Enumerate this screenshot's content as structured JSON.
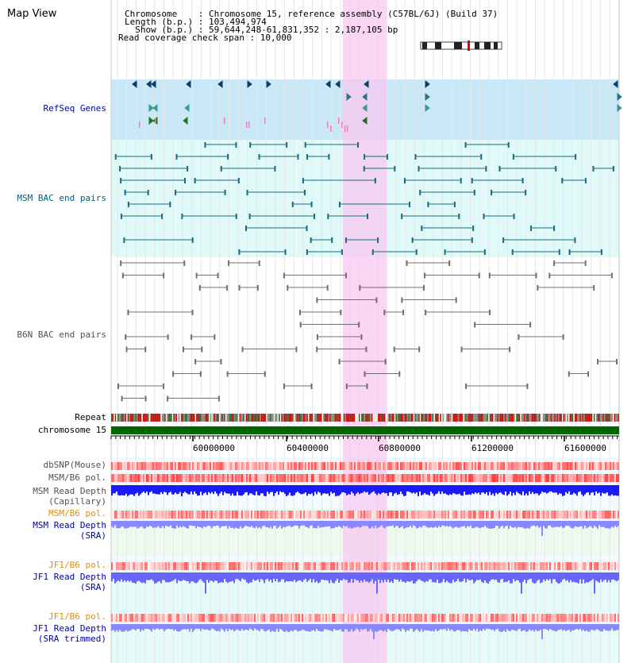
{
  "title": "Map View",
  "info": {
    "line1": "Chromosome    : Chromosome 15, reference assembly (C57BL/6J) (Build 37)",
    "line2": "Length (b.p.) : 103,494,974",
    "line3": "  Show (b.p.) : 59,644,248-61,831,352 : 2,187,105 bp",
    "line4": "Read coverage check span : 10,000"
  },
  "tracks": {
    "refseq": "RefSeq Genes",
    "msm_bac": "MSM BAC end pairs",
    "b6n_bac": "B6N BAC end pairs",
    "repeat": "Repeat",
    "chromosome": "chromosome 15",
    "dbsnp": "dbSNP(Mouse)",
    "msm_b6_pol_1": "MSM/B6 pol.",
    "msm_depth_cap_1": "MSM Read Depth",
    "msm_depth_cap_2": "(Capillary)",
    "msm_b6_pol_2": "MSM/B6 pol.",
    "msm_depth_sra_1": "MSM Read Depth",
    "msm_depth_sra_2": "(SRA)",
    "jf1_b6_pol_1": "JF1/B6 pol.",
    "jf1_depth_sra_1": "JF1 Read Depth",
    "jf1_depth_sra_2": "(SRA)",
    "jf1_b6_pol_2": "JF1/B6 pol.",
    "jf1_depth_trim_1": "JF1 Read Depth",
    "jf1_depth_trim_2": "(SRA trimmed)"
  },
  "axis": {
    "ticks": [
      "60000000",
      "60400000",
      "60800000",
      "61200000",
      "61600000"
    ]
  },
  "colors": {
    "refseq_bg": "#c8e8f8",
    "bac_bg": "#e0fafa",
    "highlight": "#f8c8f0",
    "chrom_bar": "#006400",
    "label_blue": "#0000a0",
    "label_teal": "#006080",
    "label_gray": "#505050",
    "label_orange": "#e09000"
  }
}
